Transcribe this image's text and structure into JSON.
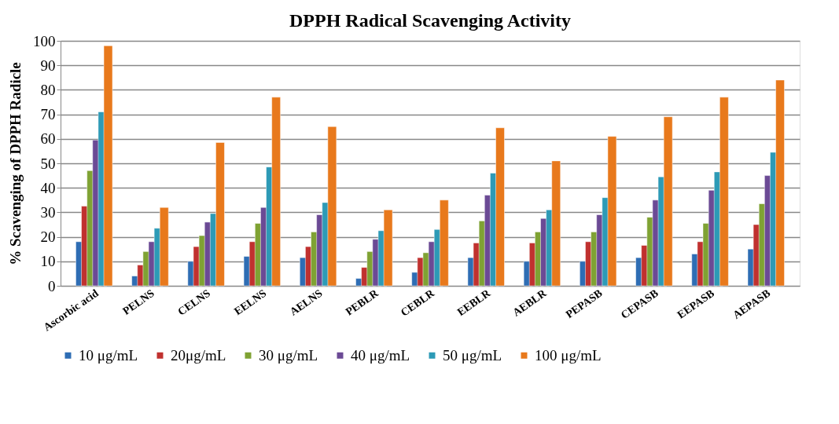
{
  "chart_data": {
    "type": "bar",
    "title": "DPPH Radical Scavenging Activity",
    "ylabel": "% Scavenging of DPPH Radicle",
    "categories": [
      "Ascorbic acid",
      "PELNS",
      "CELNS",
      "EELNS",
      "AELNS",
      "PEBLR",
      "CEBLR",
      "EEBLR",
      "AEBLR",
      "PEPASB",
      "CEPASB",
      "EEPASB",
      "AEPASB"
    ],
    "series": [
      {
        "name": "10 μg/mL",
        "color": "#2e6db4",
        "values": [
          18,
          4,
          10,
          12,
          11.5,
          3,
          5.5,
          11.5,
          10,
          10,
          11.5,
          13,
          15
        ]
      },
      {
        "name": "20μg/mL",
        "color": "#c0312f",
        "values": [
          32.5,
          8.5,
          16,
          18,
          16,
          7.5,
          11.5,
          17.5,
          17.5,
          18,
          16.5,
          18,
          25
        ]
      },
      {
        "name": "30 μg/mL",
        "color": "#7fa233",
        "values": [
          47,
          14,
          20.5,
          25.5,
          22,
          14,
          13.5,
          26.5,
          22,
          22,
          28,
          25.5,
          33.5
        ]
      },
      {
        "name": "40 μg/mL",
        "color": "#6b4a95",
        "values": [
          59.5,
          18,
          26,
          32,
          29,
          19,
          18,
          37,
          27.5,
          29,
          35,
          39,
          45
        ]
      },
      {
        "name": "50 μg/mL",
        "color": "#2d9ab6",
        "values": [
          71,
          23.5,
          29.5,
          48.5,
          34,
          22.5,
          23,
          46,
          31,
          36,
          44.5,
          46.5,
          54.5
        ]
      },
      {
        "name": "100 μg/mL",
        "color": "#e8791c",
        "values": [
          98,
          32,
          58.5,
          77,
          65,
          31,
          35,
          64.5,
          51,
          61,
          69,
          77,
          84
        ]
      }
    ],
    "ylim": [
      0,
      100
    ],
    "yticks": [
      0,
      10,
      20,
      30,
      40,
      50,
      60,
      70,
      80,
      90,
      100
    ],
    "grid": "y",
    "legend": "bottom"
  }
}
